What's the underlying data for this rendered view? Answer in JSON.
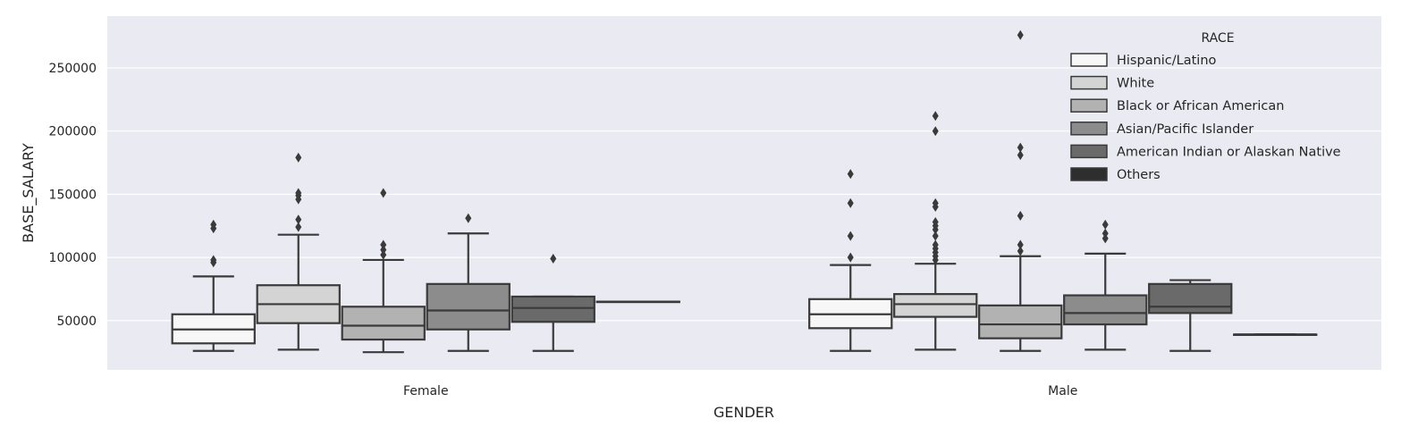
{
  "chart_data": {
    "type": "box",
    "xlabel": "GENDER",
    "ylabel": "BASE_SALARY",
    "categories": [
      "Female",
      "Male"
    ],
    "ylim": [
      11000,
      291000
    ],
    "yticks": [
      50000,
      100000,
      150000,
      200000,
      250000
    ],
    "ytick_labels": [
      "50000",
      "100000",
      "150000",
      "200000",
      "250000"
    ],
    "grid": true,
    "legend": {
      "title": "RACE",
      "placement": "top-right"
    },
    "series": [
      {
        "name": "Hispanic/Latino",
        "color": "#f7f7f7",
        "boxes": [
          {
            "min": 26000,
            "q1": 32000,
            "median": 43000,
            "q3": 55000,
            "max": 85000,
            "outliers": [
              96000,
              98000,
              123000,
              126000
            ]
          },
          {
            "min": 26000,
            "q1": 44000,
            "median": 55000,
            "q3": 67000,
            "max": 94000,
            "outliers": [
              100000,
              117000,
              143000,
              166000
            ]
          }
        ]
      },
      {
        "name": "White",
        "color": "#d4d4d4",
        "boxes": [
          {
            "min": 27000,
            "q1": 48000,
            "median": 63000,
            "q3": 78000,
            "max": 118000,
            "outliers": [
              124000,
              130000,
              146000,
              149000,
              151000,
              179000
            ]
          },
          {
            "min": 27000,
            "q1": 53000,
            "median": 63000,
            "q3": 71000,
            "max": 95000,
            "outliers": [
              98000,
              101000,
              104000,
              107000,
              110000,
              117000,
              122000,
              125000,
              128000,
              140000,
              143000,
              200000,
              212000
            ]
          }
        ]
      },
      {
        "name": "Black or African American",
        "color": "#b2b2b2",
        "boxes": [
          {
            "min": 25000,
            "q1": 35000,
            "median": 46000,
            "q3": 61000,
            "max": 98000,
            "outliers": [
              102000,
              106000,
              110000,
              151000
            ]
          },
          {
            "min": 26000,
            "q1": 36000,
            "median": 47000,
            "q3": 62000,
            "max": 101000,
            "outliers": [
              105000,
              110000,
              133000,
              181000,
              187000,
              276000
            ]
          }
        ]
      },
      {
        "name": "Asian/Pacific Islander",
        "color": "#8c8c8c",
        "boxes": [
          {
            "min": 26000,
            "q1": 43000,
            "median": 58000,
            "q3": 79000,
            "max": 119000,
            "outliers": [
              131000
            ]
          },
          {
            "min": 27000,
            "q1": 47000,
            "median": 56000,
            "q3": 70000,
            "max": 103000,
            "outliers": [
              115000,
              119000,
              126000
            ]
          }
        ]
      },
      {
        "name": "American Indian or Alaskan Native",
        "color": "#6a6a6a",
        "boxes": [
          {
            "min": 26000,
            "q1": 49000,
            "median": 60000,
            "q3": 69000,
            "max": 69000,
            "outliers": [
              99000
            ]
          },
          {
            "min": 26000,
            "q1": 56000,
            "median": 61000,
            "q3": 79000,
            "max": 82000,
            "outliers": []
          }
        ]
      },
      {
        "name": "Others",
        "color": "#2e2e2e",
        "boxes": [
          {
            "min": 65000,
            "q1": 65000,
            "median": 65000,
            "q3": 65000,
            "max": 65000,
            "outliers": []
          },
          {
            "min": 39000,
            "q1": 39000,
            "median": 39000,
            "q3": 39000,
            "max": 39000,
            "outliers": []
          }
        ]
      }
    ]
  }
}
